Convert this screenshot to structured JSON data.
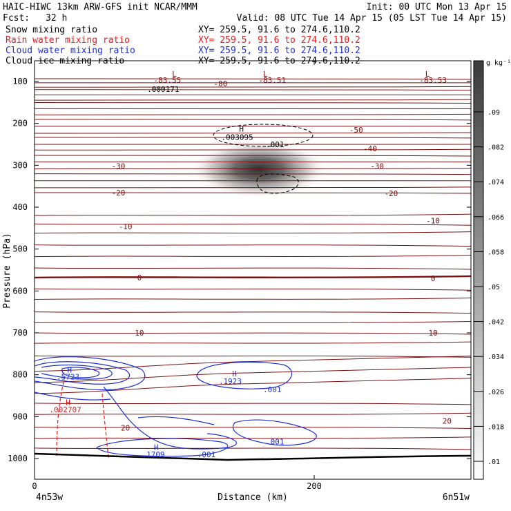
{
  "header": {
    "model_line": "HAIC-HIWC 13km ARW-GFS init   NCAR/MMM",
    "init_line": "Init: 00 UTC Mon 13 Apr 15",
    "fcst_label": "Fcst:",
    "fcst_value": "32 h",
    "valid_line": "Valid: 08 UTC Tue 14 Apr 15 (05 LST Tue 14 Apr 15)"
  },
  "legend": [
    {
      "label": "Snow mixing ratio",
      "xy": "XY= 259.5, 91.6 to 274.6,110.2",
      "color": "#000000"
    },
    {
      "label": "Rain water mixing ratio",
      "xy": "XY= 259.5, 91.6 to 274.6,110.2",
      "color": "#e41a1c"
    },
    {
      "label": "Cloud water mixing ratio",
      "xy": "XY= 259.5, 91.6 to 274.6,110.2",
      "color": "#1f2fd0"
    },
    {
      "label": "Cloud ice mixing ratio",
      "xy": "XY= 259.5, 91.6 to 274.6,110.2",
      "color": "#000000"
    }
  ],
  "chart_data": {
    "type": "contour",
    "xlabel": "Distance (km)",
    "ylabel": "Pressure (hPa)",
    "x_ticks": [
      0,
      200
    ],
    "x_range": [
      0,
      300
    ],
    "y_ticks": [
      100,
      200,
      300,
      400,
      500,
      600,
      700,
      800,
      900,
      1000
    ],
    "y_range": [
      50,
      1050
    ],
    "y_reversed": true,
    "left_endpoint_label": "4n53w",
    "right_endpoint_label": "6n51w",
    "colorbar": {
      "unit": "g kg⁻¹",
      "ticks": [
        ".09",
        ".082",
        ".074",
        ".066",
        ".058",
        ".05",
        ".042",
        ".034",
        ".026",
        ".018",
        ".01"
      ],
      "color_max": "#3a3a3a",
      "color_min": "#ffffff"
    },
    "temperature_color": "#7a1010",
    "temperature_labels": [
      {
        "text": "-80",
        "x": 133,
        "p": 105
      },
      {
        "text": "-83.55",
        "x": 95,
        "p": 97
      },
      {
        "text": "-83.51",
        "x": 170,
        "p": 97
      },
      {
        "text": "-83.53",
        "x": 285,
        "p": 97
      },
      {
        "text": "-50",
        "x": 230,
        "p": 215
      },
      {
        "text": "-40",
        "x": 240,
        "p": 260
      },
      {
        "text": "-30",
        "x": 60,
        "p": 302
      },
      {
        "text": "-30",
        "x": 245,
        "p": 302
      },
      {
        "text": "-20",
        "x": 60,
        "p": 365
      },
      {
        "text": "-20",
        "x": 255,
        "p": 367
      },
      {
        "text": "-10",
        "x": 65,
        "p": 446
      },
      {
        "text": "-10",
        "x": 285,
        "p": 432
      },
      {
        "text": "0",
        "x": 75,
        "p": 568
      },
      {
        "text": "0",
        "x": 285,
        "p": 570
      },
      {
        "text": "10",
        "x": 75,
        "p": 700
      },
      {
        "text": "10",
        "x": 285,
        "p": 700
      },
      {
        "text": "20",
        "x": 65,
        "p": 927
      },
      {
        "text": "20",
        "x": 295,
        "p": 910
      }
    ],
    "extrema_labels": [
      {
        "text": "L",
        "x": 100,
        "p": 82,
        "color": "#7a1010"
      },
      {
        "text": "L",
        "x": 165,
        "p": 82,
        "color": "#7a1010"
      },
      {
        "text": "L",
        "x": 281,
        "p": 82,
        "color": "#7a1010"
      },
      {
        "text": "H",
        "x": 148,
        "p": 213,
        "color": "#000000"
      },
      {
        "text": ".000171",
        "x": 92,
        "p": 118,
        "color": "#000000"
      },
      {
        "text": ".003095",
        "x": 145,
        "p": 233,
        "color": "#000000"
      },
      {
        "text": ".001",
        "x": 172,
        "p": 250,
        "color": "#000000"
      },
      {
        "text": "H",
        "x": 25,
        "p": 788,
        "color": "#1f2fd0"
      },
      {
        "text": ".5723",
        "x": 24,
        "p": 805,
        "color": "#1f2fd0"
      },
      {
        "text": "H",
        "x": 143,
        "p": 797,
        "color": "#1f2fd0"
      },
      {
        "text": ".1923",
        "x": 140,
        "p": 815,
        "color": "#1f2fd0"
      },
      {
        "text": ".001",
        "x": 170,
        "p": 835,
        "color": "#1f2fd0"
      },
      {
        "text": "H",
        "x": 24,
        "p": 866,
        "color": "#e41a1c"
      },
      {
        "text": ".002707",
        "x": 22,
        "p": 883,
        "color": "#e41a1c"
      },
      {
        "text": "H",
        "x": 87,
        "p": 973,
        "color": "#1f2fd0"
      },
      {
        "text": ".1709",
        "x": 85,
        "p": 990,
        "color": "#1f2fd0"
      },
      {
        "text": ".001",
        "x": 123,
        "p": 990,
        "color": "#1f2fd0"
      },
      {
        "text": ".001",
        "x": 172,
        "p": 960,
        "color": "#1f2fd0"
      }
    ]
  }
}
